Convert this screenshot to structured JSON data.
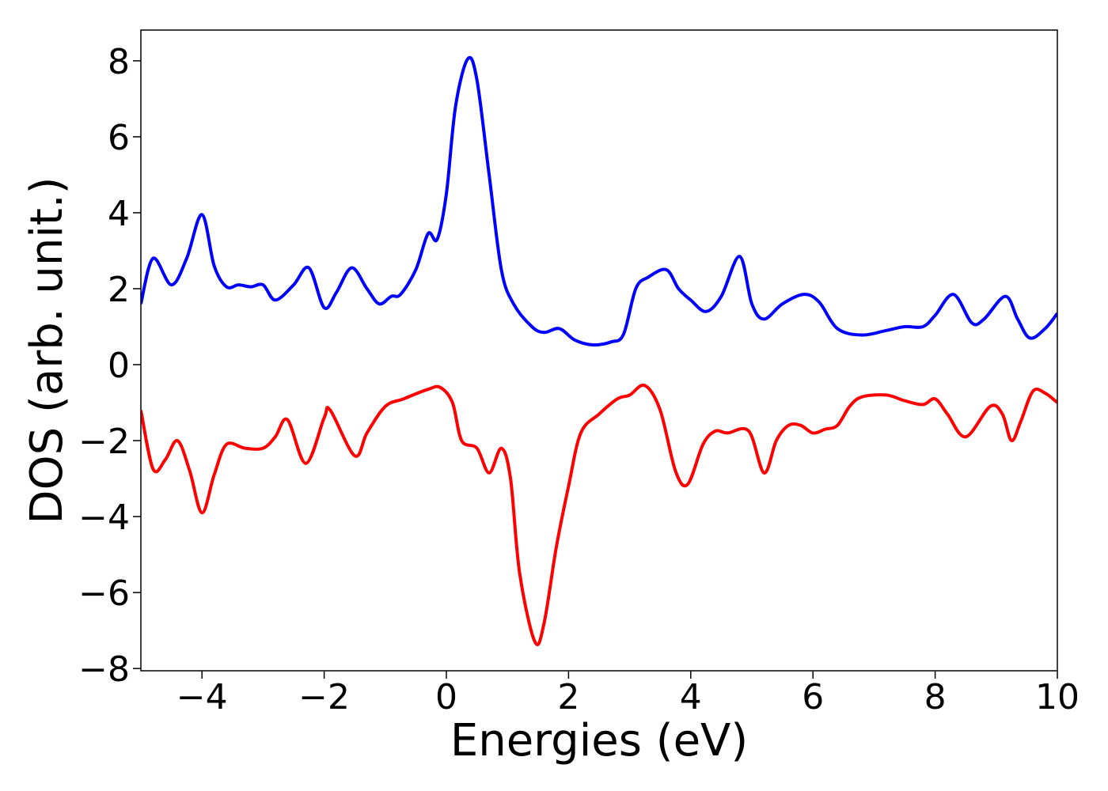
{
  "chart_data": {
    "type": "line",
    "xlabel": "Energies (eV)",
    "ylabel": "DOS (arb. unit.)",
    "xlim": [
      -5,
      10
    ],
    "ylim": [
      -8.06,
      8.81
    ],
    "xticks": [
      {
        "value": -4,
        "label": "−4"
      },
      {
        "value": -2,
        "label": "−2"
      },
      0,
      2,
      4,
      6,
      8,
      10
    ],
    "yticks": [
      {
        "value": -8,
        "label": "−8"
      },
      {
        "value": -6,
        "label": "−6"
      },
      {
        "value": -4,
        "label": "−4"
      },
      {
        "value": -2,
        "label": "−2"
      },
      0,
      2,
      4,
      6,
      8
    ],
    "series": [
      {
        "color": "#0000ff",
        "x": [
          -5,
          -4.8,
          -4.5,
          -4.25,
          -4.0,
          -3.8,
          -3.6,
          -3.4,
          -3.2,
          -3.0,
          -2.8,
          -2.5,
          -2.25,
          -2.0,
          -1.8,
          -1.55,
          -1.3,
          -1.1,
          -0.9,
          -0.75,
          -0.5,
          -0.3,
          -0.15,
          0.0,
          0.15,
          0.35,
          0.5,
          0.7,
          0.9,
          1.1,
          1.4,
          1.6,
          1.85,
          2.1,
          2.4,
          2.7,
          2.9,
          3.1,
          3.3,
          3.6,
          3.8,
          4.0,
          4.25,
          4.5,
          4.8,
          5.0,
          5.2,
          5.5,
          5.85,
          6.1,
          6.4,
          6.8,
          7.2,
          7.5,
          7.8,
          8.0,
          8.3,
          8.6,
          8.8,
          9.15,
          9.35,
          9.55,
          9.8,
          10.0
        ],
        "values": [
          1.6,
          2.8,
          2.1,
          2.8,
          3.95,
          2.6,
          2.05,
          2.1,
          2.05,
          2.1,
          1.7,
          2.1,
          2.55,
          1.5,
          1.9,
          2.55,
          2.0,
          1.6,
          1.8,
          1.85,
          2.5,
          3.45,
          3.3,
          4.5,
          6.8,
          8.05,
          7.5,
          5.0,
          2.5,
          1.6,
          1.0,
          0.85,
          0.95,
          0.65,
          0.52,
          0.6,
          0.8,
          2.0,
          2.3,
          2.5,
          2.0,
          1.7,
          1.4,
          1.8,
          2.85,
          1.6,
          1.2,
          1.6,
          1.85,
          1.65,
          0.95,
          0.78,
          0.9,
          1.0,
          1.0,
          1.3,
          1.85,
          1.1,
          1.2,
          1.8,
          1.2,
          0.7,
          0.95,
          1.35
        ]
      },
      {
        "color": "#ff0000",
        "x": [
          -5,
          -4.8,
          -4.6,
          -4.4,
          -4.2,
          -4.0,
          -3.8,
          -3.6,
          -3.3,
          -3.0,
          -2.8,
          -2.6,
          -2.3,
          -2.0,
          -1.9,
          -1.5,
          -1.3,
          -1.0,
          -0.7,
          -0.3,
          -0.1,
          0.1,
          0.25,
          0.5,
          0.7,
          0.9,
          1.05,
          1.2,
          1.45,
          1.6,
          1.8,
          2.0,
          2.2,
          2.5,
          2.8,
          3.0,
          3.25,
          3.5,
          3.75,
          3.95,
          4.2,
          4.4,
          4.6,
          4.95,
          5.2,
          5.4,
          5.6,
          5.8,
          6.0,
          6.2,
          6.4,
          6.6,
          6.8,
          7.2,
          7.5,
          7.8,
          8.0,
          8.2,
          8.5,
          8.9,
          9.1,
          9.25,
          9.4,
          9.6,
          9.8,
          10.0
        ],
        "values": [
          -1.2,
          -2.75,
          -2.5,
          -2.0,
          -2.8,
          -3.9,
          -2.9,
          -2.1,
          -2.2,
          -2.2,
          -1.9,
          -1.45,
          -2.6,
          -1.4,
          -1.2,
          -2.4,
          -1.8,
          -1.1,
          -0.9,
          -0.65,
          -0.6,
          -1.0,
          -2.0,
          -2.2,
          -2.85,
          -2.2,
          -3.0,
          -5.5,
          -7.3,
          -6.8,
          -4.8,
          -3.2,
          -1.8,
          -1.3,
          -0.9,
          -0.8,
          -0.55,
          -1.2,
          -2.8,
          -3.15,
          -2.1,
          -1.75,
          -1.8,
          -1.75,
          -2.85,
          -2.0,
          -1.6,
          -1.6,
          -1.8,
          -1.7,
          -1.6,
          -1.1,
          -0.85,
          -0.8,
          -0.95,
          -1.05,
          -0.9,
          -1.3,
          -1.9,
          -1.1,
          -1.3,
          -2.0,
          -1.5,
          -0.7,
          -0.75,
          -1.0
        ]
      }
    ]
  }
}
